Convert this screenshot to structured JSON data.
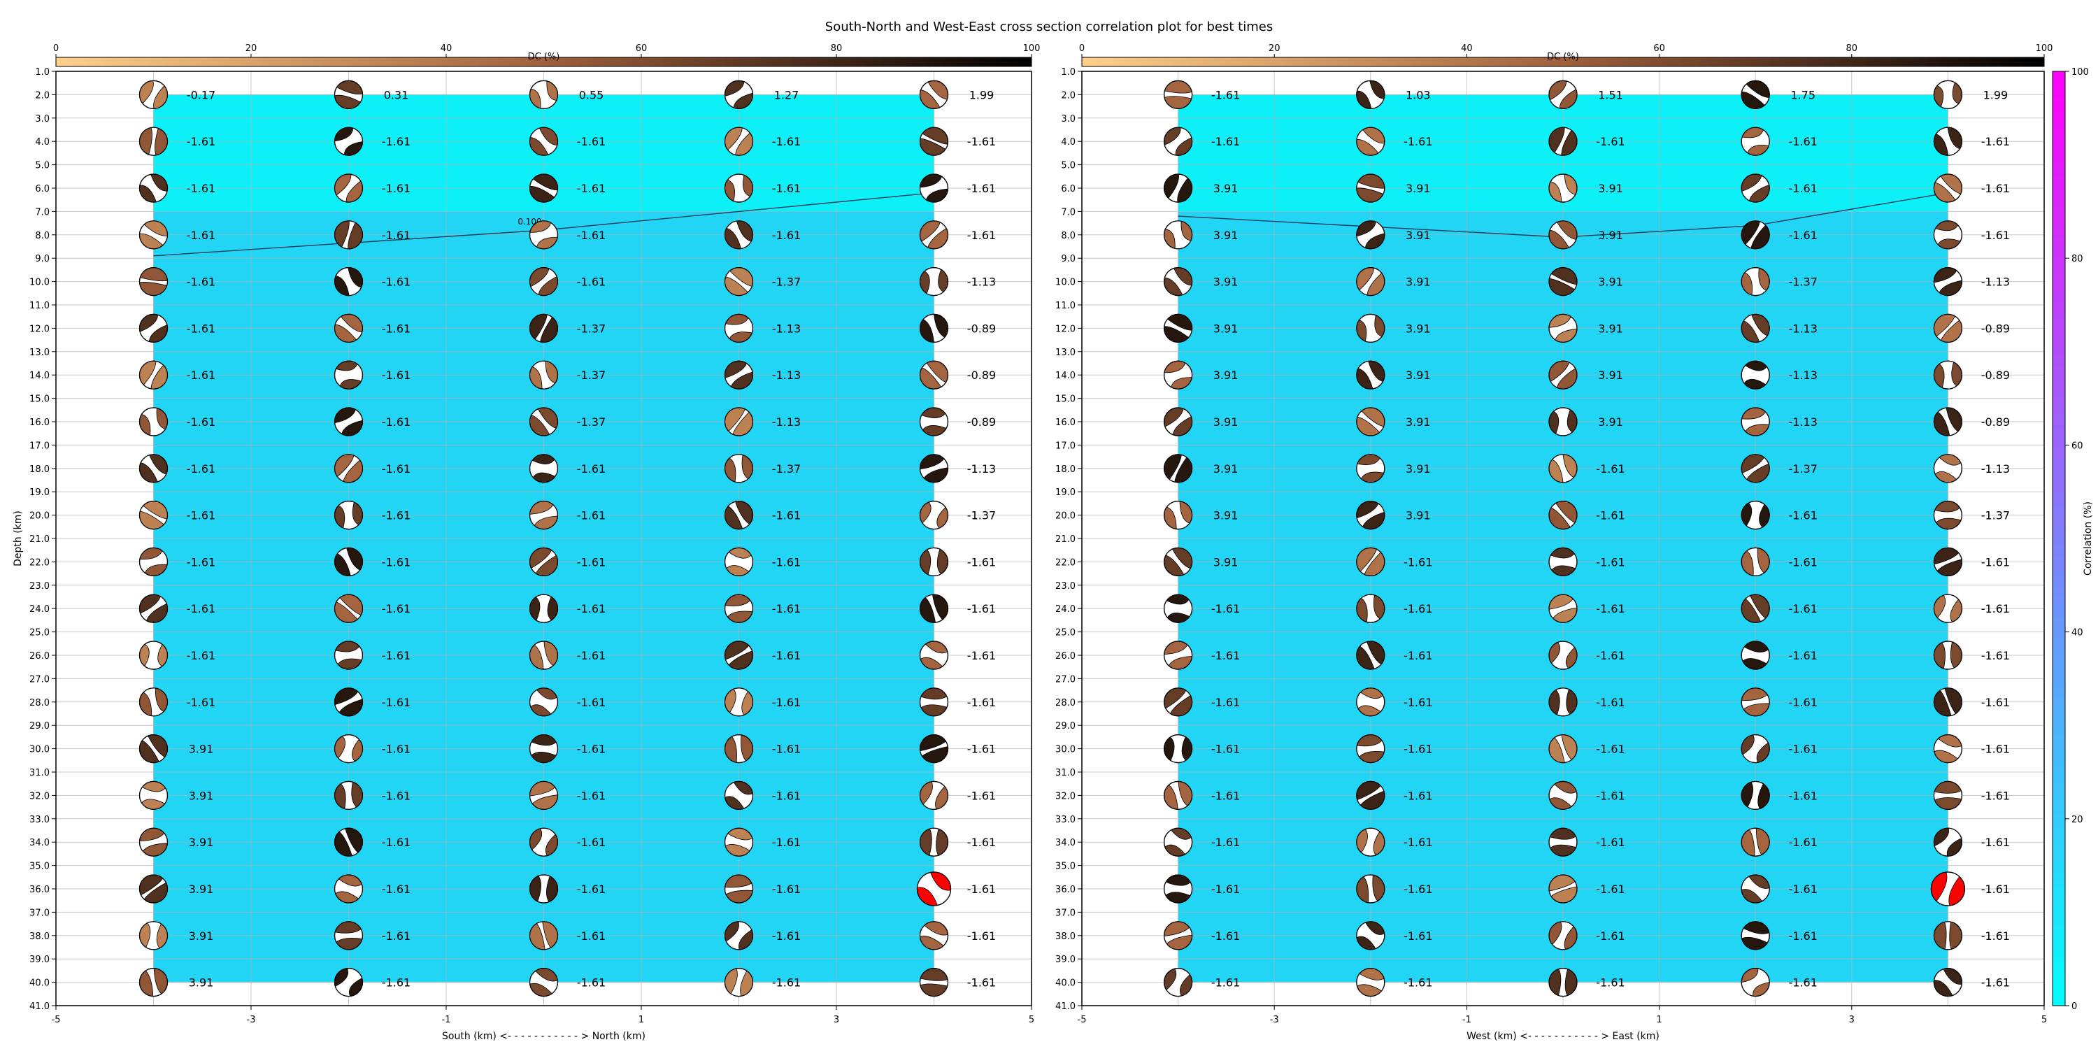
{
  "suptitle": "South-North and West-East cross section correlation plot for best times",
  "colors": {
    "background": "#ffffff",
    "correlation_min": "#00ffff",
    "correlation_max": "#ff00ff",
    "dc_min": "#ffd08a",
    "dc_mid": "#a0603c",
    "dc_max": "#000000",
    "highlight_beachball": "#ff0000",
    "grid": "#b0b0b0"
  },
  "chart_data": [
    {
      "type": "heatmap",
      "panel": "south-north",
      "xlabel": "South (km) <- - - - - - - - - - - > North (km)",
      "ylabel": "Depth (km)",
      "xlim": [
        -5,
        5
      ],
      "ylim": [
        41,
        1
      ],
      "xticks": [
        "-5",
        "-3",
        "-1",
        "1",
        "3",
        "5"
      ],
      "yticks": [
        "1.0",
        "2.0",
        "3.0",
        "4.0",
        "5.0",
        "6.0",
        "7.0",
        "8.0",
        "9.0",
        "10.0",
        "11.0",
        "12.0",
        "13.0",
        "14.0",
        "15.0",
        "16.0",
        "17.0",
        "18.0",
        "19.0",
        "20.0",
        "21.0",
        "22.0",
        "23.0",
        "24.0",
        "25.0",
        "26.0",
        "27.0",
        "28.0",
        "29.0",
        "30.0",
        "31.0",
        "32.0",
        "33.0",
        "34.0",
        "35.0",
        "36.0",
        "37.0",
        "38.0",
        "39.0",
        "40.0",
        "41.0"
      ],
      "grid": true,
      "positions_km": [
        -4,
        -2,
        0,
        2,
        4
      ],
      "depths_km": [
        2,
        4,
        6,
        8,
        10,
        12,
        14,
        16,
        18,
        20,
        22,
        24,
        26,
        28,
        30,
        32,
        34,
        36,
        38,
        40
      ],
      "correlation_field": "approximately uniform, ~13% (cyan-blue) at 2-6 km depth, ~22% below",
      "contour": {
        "label": "0.100",
        "points": [
          [
            -4,
            8.9
          ],
          [
            0,
            7.8
          ],
          [
            4,
            6.2
          ]
        ]
      },
      "best_solution": {
        "x_km": 4,
        "depth_km": 36
      },
      "time_labels": [
        [
          "-0.17",
          "0.31",
          "0.55",
          "1.27",
          "1.99"
        ],
        [
          "-1.61",
          "-1.61",
          "-1.61",
          "-1.61",
          "-1.61"
        ],
        [
          "-1.61",
          "-1.61",
          "-1.61",
          "-1.61",
          "-1.61"
        ],
        [
          "-1.61",
          "-1.61",
          "-1.61",
          "-1.61",
          "-1.61"
        ],
        [
          "-1.61",
          "-1.61",
          "-1.61",
          "-1.37",
          "-1.13"
        ],
        [
          "-1.61",
          "-1.61",
          "-1.37",
          "-1.13",
          "-0.89"
        ],
        [
          "-1.61",
          "-1.61",
          "-1.37",
          "-1.13",
          "-0.89"
        ],
        [
          "-1.61",
          "-1.61",
          "-1.37",
          "-1.13",
          "-0.89"
        ],
        [
          "-1.61",
          "-1.61",
          "-1.61",
          "-1.37",
          "-1.13"
        ],
        [
          "-1.61",
          "-1.61",
          "-1.61",
          "-1.61",
          "-1.37"
        ],
        [
          "-1.61",
          "-1.61",
          "-1.61",
          "-1.61",
          "-1.61"
        ],
        [
          "-1.61",
          "-1.61",
          "-1.61",
          "-1.61",
          "-1.61"
        ],
        [
          "-1.61",
          "-1.61",
          "-1.61",
          "-1.61",
          "-1.61"
        ],
        [
          "-1.61",
          "-1.61",
          "-1.61",
          "-1.61",
          "-1.61"
        ],
        [
          "3.91",
          "-1.61",
          "-1.61",
          "-1.61",
          "-1.61"
        ],
        [
          "3.91",
          "-1.61",
          "-1.61",
          "-1.61",
          "-1.61"
        ],
        [
          "3.91",
          "-1.61",
          "-1.61",
          "-1.61",
          "-1.61"
        ],
        [
          "3.91",
          "-1.61",
          "-1.61",
          "-1.61",
          "-1.61"
        ],
        [
          "3.91",
          "-1.61",
          "-1.61",
          "-1.61",
          "-1.61"
        ],
        [
          "3.91",
          "-1.61",
          "-1.61",
          "-1.61",
          "-1.61"
        ]
      ]
    },
    {
      "type": "heatmap",
      "panel": "west-east",
      "xlabel": "West (km) <- - - - - - - - - - - > East (km)",
      "ylabel": "",
      "xlim": [
        -5,
        5
      ],
      "ylim": [
        41,
        1
      ],
      "xticks": [
        "-5",
        "-3",
        "-1",
        "1",
        "3",
        "5"
      ],
      "yticks": [
        "1.0",
        "2.0",
        "3.0",
        "4.0",
        "5.0",
        "6.0",
        "7.0",
        "8.0",
        "9.0",
        "10.0",
        "11.0",
        "12.0",
        "13.0",
        "14.0",
        "15.0",
        "16.0",
        "17.0",
        "18.0",
        "19.0",
        "20.0",
        "21.0",
        "22.0",
        "23.0",
        "24.0",
        "25.0",
        "26.0",
        "27.0",
        "28.0",
        "29.0",
        "30.0",
        "31.0",
        "32.0",
        "33.0",
        "34.0",
        "35.0",
        "36.0",
        "37.0",
        "38.0",
        "39.0",
        "40.0",
        "41.0"
      ],
      "grid": true,
      "positions_km": [
        -4,
        -2,
        0,
        2,
        4
      ],
      "depths_km": [
        2,
        4,
        6,
        8,
        10,
        12,
        14,
        16,
        18,
        20,
        22,
        24,
        26,
        28,
        30,
        32,
        34,
        36,
        38,
        40
      ],
      "correlation_field": "approximately uniform, ~13% (cyan-blue) at 2-6 km depth, ~22% below",
      "contour": {
        "label": "",
        "points": [
          [
            -4,
            7.2
          ],
          [
            0,
            8.1
          ],
          [
            2,
            7.6
          ],
          [
            4,
            6.2
          ]
        ]
      },
      "best_solution": {
        "x_km": 4,
        "depth_km": 36
      },
      "time_labels": [
        [
          "-1.61",
          "1.03",
          "1.51",
          "1.75",
          "1.99"
        ],
        [
          "-1.61",
          "-1.61",
          "-1.61",
          "-1.61",
          "-1.61"
        ],
        [
          "3.91",
          "3.91",
          "3.91",
          "-1.61",
          "-1.61"
        ],
        [
          "3.91",
          "3.91",
          "3.91",
          "-1.61",
          "-1.61"
        ],
        [
          "3.91",
          "3.91",
          "3.91",
          "-1.37",
          "-1.13"
        ],
        [
          "3.91",
          "3.91",
          "3.91",
          "-1.13",
          "-0.89"
        ],
        [
          "3.91",
          "3.91",
          "3.91",
          "-1.13",
          "-0.89"
        ],
        [
          "3.91",
          "3.91",
          "3.91",
          "-1.13",
          "-0.89"
        ],
        [
          "3.91",
          "3.91",
          "-1.61",
          "-1.37",
          "-1.13"
        ],
        [
          "3.91",
          "3.91",
          "-1.61",
          "-1.61",
          "-1.37"
        ],
        [
          "3.91",
          "-1.61",
          "-1.61",
          "-1.61",
          "-1.61"
        ],
        [
          "-1.61",
          "-1.61",
          "-1.61",
          "-1.61",
          "-1.61"
        ],
        [
          "-1.61",
          "-1.61",
          "-1.61",
          "-1.61",
          "-1.61"
        ],
        [
          "-1.61",
          "-1.61",
          "-1.61",
          "-1.61",
          "-1.61"
        ],
        [
          "-1.61",
          "-1.61",
          "-1.61",
          "-1.61",
          "-1.61"
        ],
        [
          "-1.61",
          "-1.61",
          "-1.61",
          "-1.61",
          "-1.61"
        ],
        [
          "-1.61",
          "-1.61",
          "-1.61",
          "-1.61",
          "-1.61"
        ],
        [
          "-1.61",
          "-1.61",
          "-1.61",
          "-1.61",
          "-1.61"
        ],
        [
          "-1.61",
          "-1.61",
          "-1.61",
          "-1.61",
          "-1.61"
        ],
        [
          "-1.61",
          "-1.61",
          "-1.61",
          "-1.61",
          "-1.61"
        ]
      ]
    }
  ],
  "dc_colorbars": [
    {
      "label": "DC (%)",
      "range": [
        0,
        100
      ],
      "ticks": [
        "0",
        "20",
        "40",
        "60",
        "80",
        "100"
      ]
    },
    {
      "label": "DC (%)",
      "range": [
        0,
        100
      ],
      "ticks": [
        "0",
        "20",
        "40",
        "60",
        "80",
        "100"
      ]
    }
  ],
  "correlation_colorbar": {
    "label": "Correlation (%)",
    "range": [
      0,
      100
    ],
    "ticks": [
      "0",
      "20",
      "40",
      "60",
      "80",
      "100"
    ]
  }
}
